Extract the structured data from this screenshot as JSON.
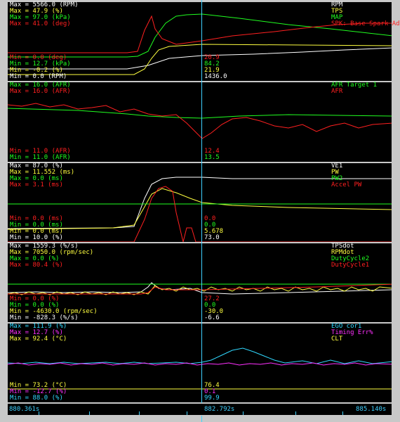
{
  "colors": {
    "white": "#ffffff",
    "yellow": "#ffff40",
    "green": "#20ff20",
    "red": "#ff2020",
    "cyan": "#30d8ff",
    "magenta": "#ff30ff",
    "cursor": "#3fd0ff"
  },
  "panels": [
    {
      "id": "p1",
      "left_labels": [
        {
          "text": "Max = 5566.0 (RPM)",
          "color": "white"
        },
        {
          "text": "Max = 47.9 (%)",
          "color": "yellow"
        },
        {
          "text": "Max = 97.0 (kPa)",
          "color": "green"
        },
        {
          "text": "Max = 41.0 (deg)",
          "color": "red"
        }
      ],
      "min_labels": [
        {
          "text": "Min = 0.0 (deg)",
          "color": "red"
        },
        {
          "text": "Min = 12.7 (kPa)",
          "color": "green"
        },
        {
          "text": "Min = -0.2 (%)",
          "color": "yellow"
        },
        {
          "text": "Min = 0.0 (RPM)",
          "color": "white"
        }
      ],
      "right_labels": [
        {
          "text": "RPM",
          "color": "white"
        },
        {
          "text": "TPS",
          "color": "yellow"
        },
        {
          "text": "MAP",
          "color": "green"
        },
        {
          "text": "SPK: Base Spark Advance",
          "color": "red"
        }
      ],
      "cursor_values": [
        {
          "text": "20.9",
          "color": "red"
        },
        {
          "text": "84.2",
          "color": "green"
        },
        {
          "text": "21.9",
          "color": "yellow"
        },
        {
          "text": "1436.0",
          "color": "white"
        }
      ]
    },
    {
      "id": "p2",
      "left_labels": [
        {
          "text": "Max = 16.0 (AFR)",
          "color": "green"
        },
        {
          "text": "Max = 16.0 (AFR)",
          "color": "red"
        }
      ],
      "min_labels": [
        {
          "text": "Min = 11.0 (AFR)",
          "color": "red"
        },
        {
          "text": "Min = 11.0 (AFR)",
          "color": "green"
        }
      ],
      "right_labels": [
        {
          "text": "AFR Target 1",
          "color": "green"
        },
        {
          "text": "AFR",
          "color": "red"
        }
      ],
      "cursor_values": [
        {
          "text": "12.4",
          "color": "red"
        },
        {
          "text": "13.5",
          "color": "green"
        }
      ]
    },
    {
      "id": "p3",
      "left_labels": [
        {
          "text": "Max = 87.0 (%)",
          "color": "white"
        },
        {
          "text": "Max = 11.552 (ms)",
          "color": "yellow"
        },
        {
          "text": "Max = 0.0 (ms)",
          "color": "green"
        },
        {
          "text": "Max = 3.1 (ms)",
          "color": "red"
        }
      ],
      "min_labels": [
        {
          "text": "Min = 0.0 (ms)",
          "color": "red"
        },
        {
          "text": "Min = 0.0 (ms)",
          "color": "green"
        },
        {
          "text": "Min = 0.0 (ms)",
          "color": "yellow"
        },
        {
          "text": "Min = 10.0 (%)",
          "color": "white"
        }
      ],
      "right_labels": [
        {
          "text": "VE1",
          "color": "white"
        },
        {
          "text": "PW",
          "color": "yellow"
        },
        {
          "text": "PW2",
          "color": "green"
        },
        {
          "text": "Accel PW",
          "color": "red"
        }
      ],
      "cursor_values": [
        {
          "text": "0.0",
          "color": "red"
        },
        {
          "text": "0.0",
          "color": "green"
        },
        {
          "text": "5.678",
          "color": "yellow"
        },
        {
          "text": "73.0",
          "color": "white"
        }
      ]
    },
    {
      "id": "p4",
      "left_labels": [
        {
          "text": "Max = 1559.3 (%/s)",
          "color": "white"
        },
        {
          "text": "Max = 7050.0 (rpm/sec)",
          "color": "yellow"
        },
        {
          "text": "Max = 0.0 (%)",
          "color": "green"
        },
        {
          "text": "Max = 80.4 (%)",
          "color": "red"
        }
      ],
      "min_labels": [
        {
          "text": "Min = 0.0 (%)",
          "color": "red"
        },
        {
          "text": "Min = 0.0 (%)",
          "color": "green"
        },
        {
          "text": "Min = -4630.0 (rpm/sec)",
          "color": "yellow"
        },
        {
          "text": "Min = -828.3 (%/s)",
          "color": "white"
        }
      ],
      "right_labels": [
        {
          "text": "TPSdot",
          "color": "white"
        },
        {
          "text": "RPMdot",
          "color": "yellow"
        },
        {
          "text": "DutyCycle2",
          "color": "green"
        },
        {
          "text": "DutyCycle1",
          "color": "red"
        }
      ],
      "cursor_values": [
        {
          "text": "27.2",
          "color": "red"
        },
        {
          "text": "0.0",
          "color": "green"
        },
        {
          "text": "-30.0",
          "color": "yellow"
        },
        {
          "text": "-6.6",
          "color": "white"
        }
      ]
    },
    {
      "id": "p5",
      "left_labels": [
        {
          "text": "Max = 111.9 (%)",
          "color": "cyan"
        },
        {
          "text": "Max = 12.7 (%)",
          "color": "magenta"
        },
        {
          "text": "Max = 92.4 (°C)",
          "color": "yellow"
        }
      ],
      "min_labels": [
        {
          "text": "Min = 73.2 (°C)",
          "color": "yellow"
        },
        {
          "text": "Min = -12.7 (%)",
          "color": "magenta"
        },
        {
          "text": "Min = 88.0 (%)",
          "color": "cyan"
        }
      ],
      "right_labels": [
        {
          "text": "EGO cor1",
          "color": "cyan"
        },
        {
          "text": "Timing Err%",
          "color": "magenta"
        },
        {
          "text": "CLT",
          "color": "yellow"
        }
      ],
      "cursor_values": [
        {
          "text": "76.4",
          "color": "yellow"
        },
        {
          "text": "0.1",
          "color": "magenta"
        },
        {
          "text": "99.9",
          "color": "cyan"
        }
      ]
    }
  ],
  "timeline": {
    "start": "880.361s",
    "cursor": "882.792s",
    "end": "885.140s"
  }
}
